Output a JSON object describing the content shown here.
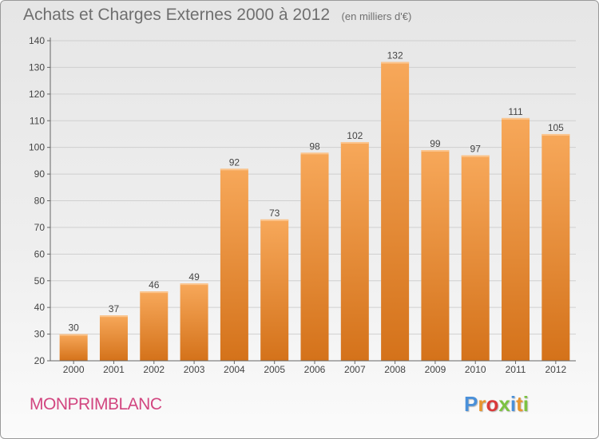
{
  "header": {
    "title": "Achats et Charges Externes 2000 à 2012",
    "unit": "(en milliers d'€)"
  },
  "footer": {
    "commune": "MONPRIMBLANC",
    "logo_letters": [
      "P",
      "r",
      "o",
      "x",
      "i",
      "t",
      "i"
    ],
    "logo_colors": [
      "#4a90d9",
      "#e8962e",
      "#d93a3a",
      "#7cc242",
      "#4a90d9",
      "#e8962e",
      "#7cc242"
    ]
  },
  "colors": {
    "bar_top": "#f7a85a",
    "bar_bottom": "#d4721a",
    "gridline": "#cfcfcf",
    "axis_text": "#444444"
  },
  "chart_data": {
    "type": "bar",
    "title": "Achats et Charges Externes 2000 à 2012",
    "subtitle": "(en milliers d'€)",
    "categories": [
      "2000",
      "2001",
      "2002",
      "2003",
      "2004",
      "2005",
      "2006",
      "2007",
      "2008",
      "2009",
      "2010",
      "2011",
      "2012"
    ],
    "values": [
      30,
      37,
      46,
      49,
      92,
      73,
      98,
      102,
      132,
      99,
      97,
      111,
      105
    ],
    "ylim": [
      20,
      140
    ],
    "yticks": [
      20,
      30,
      40,
      50,
      60,
      70,
      80,
      90,
      100,
      110,
      120,
      130,
      140
    ],
    "grid": true,
    "data_labels": true
  }
}
